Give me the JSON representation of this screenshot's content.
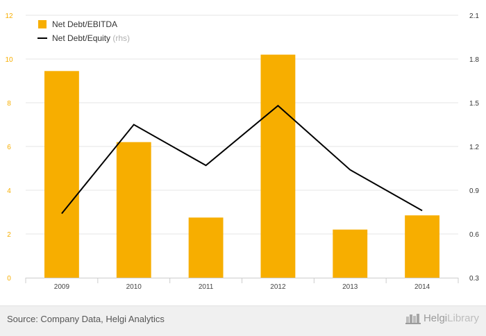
{
  "chart_data": {
    "type": "bar+line",
    "categories": [
      "2009",
      "2010",
      "2011",
      "2012",
      "2013",
      "2014"
    ],
    "series": [
      {
        "name": "Net Debt/EBITDA",
        "type": "bar",
        "axis": "left",
        "color": "#f7ae00",
        "values": [
          9.45,
          6.2,
          2.75,
          10.2,
          2.2,
          2.85
        ]
      },
      {
        "name": "Net Debt/Equity",
        "type": "line",
        "axis": "right",
        "color": "#000000",
        "values": [
          0.74,
          1.35,
          1.07,
          1.48,
          1.04,
          0.76
        ]
      }
    ],
    "left_axis": {
      "ylim": [
        0,
        12
      ],
      "ticks": [
        "0",
        "2",
        "4",
        "6",
        "8",
        "10",
        "12"
      ],
      "color": "#f7ae00"
    },
    "right_axis": {
      "ylim": [
        0.3,
        2.1
      ],
      "ticks": [
        "0.3",
        "0.6",
        "0.9",
        "1.2",
        "1.5",
        "1.8",
        "2.1"
      ]
    },
    "legend": [
      {
        "label": "Net Debt/EBITDA",
        "suffix": ""
      },
      {
        "label": "Net Debt/Equity",
        "suffix": "(rhs)"
      }
    ],
    "grid": "horizontal",
    "legend_position": "top-left"
  },
  "footer": {
    "source": "Source: Company Data, Helgi Analytics",
    "brand_part1": "Helgi",
    "brand_part2": "Library",
    "logo_icon": "helgi-castle-icon"
  }
}
